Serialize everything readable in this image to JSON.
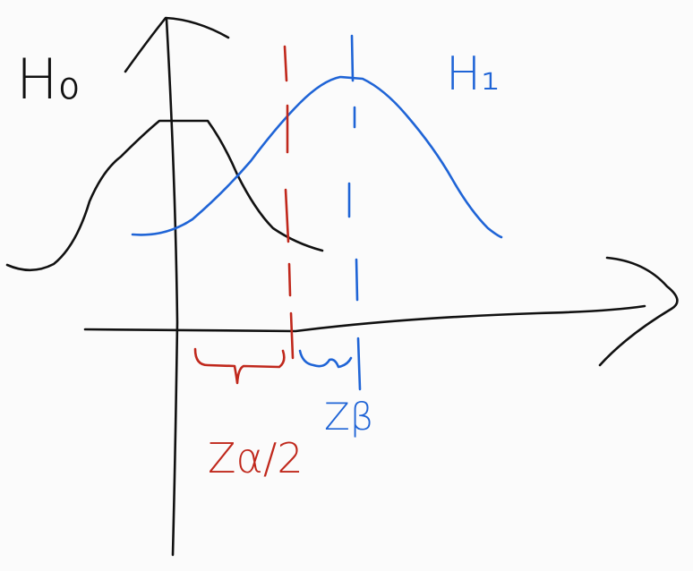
{
  "labels": {
    "h0": "H₀",
    "h1": "H₁",
    "z_alpha": "Zα/2",
    "z_beta": "Zβ"
  }
}
